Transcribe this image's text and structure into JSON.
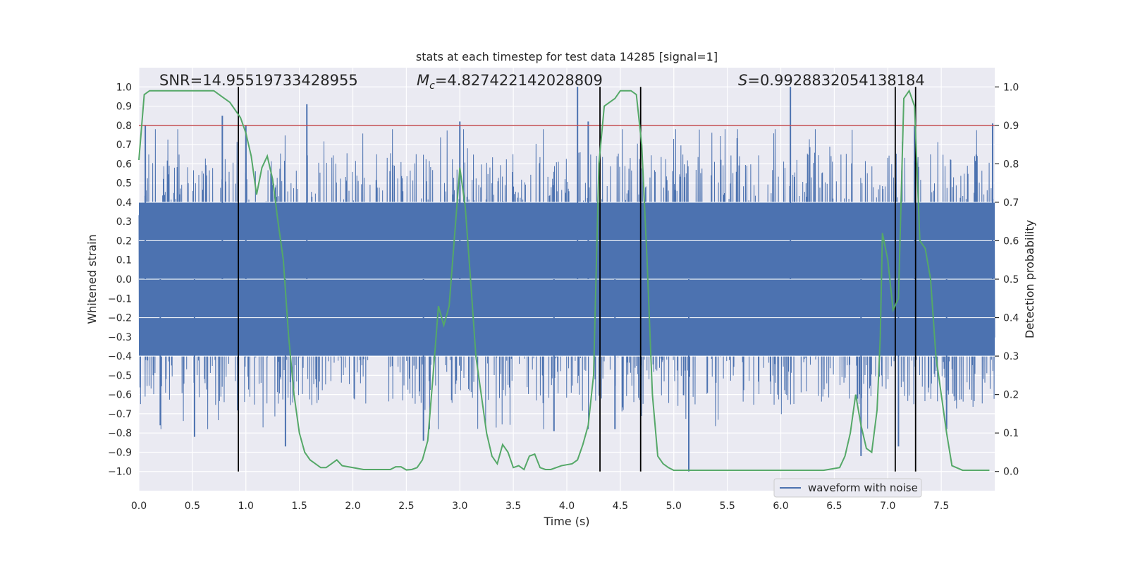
{
  "chart_data": {
    "type": "line",
    "title": "stats at each timestep for test data 14285 [signal=1]",
    "xlabel": "Time (s)",
    "ylabel_left": "Whitened strain",
    "ylabel_right": "Detection probability",
    "xlim": [
      0.0,
      8.0
    ],
    "ylim_left": [
      -1.1,
      1.1
    ],
    "ylim_right": [
      -0.05,
      1.05
    ],
    "xticks": [
      0.0,
      0.5,
      1.0,
      1.5,
      2.0,
      2.5,
      3.0,
      3.5,
      4.0,
      4.5,
      5.0,
      5.5,
      6.0,
      6.5,
      7.0,
      7.5
    ],
    "xtick_labels": [
      "0.0",
      "0.5",
      "1.0",
      "1.5",
      "2.0",
      "2.5",
      "3.0",
      "3.5",
      "4.0",
      "4.5",
      "5.0",
      "5.5",
      "6.0",
      "6.5",
      "7.0",
      "7.5"
    ],
    "yticks_left": [
      1.0,
      0.9,
      0.8,
      0.7,
      0.6,
      0.5,
      0.4,
      0.3,
      0.2,
      0.1,
      0.0,
      -0.1,
      -0.2,
      -0.3,
      -0.4,
      -0.5,
      -0.6,
      -0.7,
      -0.8,
      -0.9,
      -1.0
    ],
    "ytick_labels_left": [
      "1.0",
      "0.9",
      "0.8",
      "0.7",
      "0.6",
      "0.5",
      "0.4",
      "0.3",
      "0.2",
      "0.1",
      "0.0",
      "−0.1",
      "−0.2",
      "−0.3",
      "−0.4",
      "−0.5",
      "−0.6",
      "−0.7",
      "−0.8",
      "−0.9",
      "−1.0"
    ],
    "yticks_right": [
      1.0,
      0.9,
      0.8,
      0.7,
      0.6,
      0.5,
      0.4,
      0.3,
      0.2,
      0.1,
      0.0
    ],
    "ytick_labels_right": [
      "1.0",
      "0.9",
      "0.8",
      "0.7",
      "0.6",
      "0.5",
      "0.4",
      "0.3",
      "0.2",
      "0.1",
      "0.0"
    ],
    "annotations": {
      "snr": "SNR=14.95519733428955",
      "mc_symbol": "M",
      "mc_subscript": "c",
      "mc_value": "=4.827422142028809",
      "s_symbol": "S",
      "s_value": "=0.9928832054138184"
    },
    "legend": {
      "label": "waveform with noise",
      "location": "lower-right"
    },
    "threshold_line": {
      "value": 0.9,
      "axis": "right",
      "color": "#c44e52"
    },
    "vertical_lines": [
      0.93,
      4.31,
      4.69,
      7.07,
      7.26
    ],
    "waveform": {
      "name": "waveform with noise",
      "color": "#4c72b0",
      "x_range": [
        0.0,
        8.0
      ],
      "dense_band": [
        -0.4,
        0.4
      ],
      "peaks": [
        {
          "x": 0.06,
          "y": 0.8
        },
        {
          "x": 0.78,
          "y": 0.85
        },
        {
          "x": 1.0,
          "y": 0.8
        },
        {
          "x": 1.57,
          "y": 0.91
        },
        {
          "x": 3.0,
          "y": 0.82
        },
        {
          "x": 4.1,
          "y": 1.0
        },
        {
          "x": 6.09,
          "y": 1.0
        },
        {
          "x": 7.98,
          "y": 0.81
        },
        {
          "x": 4.2,
          "y": 0.82
        },
        {
          "x": 7.25,
          "y": 0.8
        }
      ],
      "troughs": [
        {
          "x": 0.52,
          "y": -0.82
        },
        {
          "x": 1.37,
          "y": -0.87
        },
        {
          "x": 2.66,
          "y": -0.84
        },
        {
          "x": 5.14,
          "y": -1.0
        },
        {
          "x": 6.75,
          "y": -0.92
        },
        {
          "x": 7.1,
          "y": -0.87
        },
        {
          "x": 7.55,
          "y": -0.78
        },
        {
          "x": 3.88,
          "y": -0.79
        },
        {
          "x": 4.45,
          "y": -0.78
        },
        {
          "x": 0.2,
          "y": -0.76
        }
      ]
    },
    "detection_probability": {
      "color": "#55a868",
      "axis": "right",
      "x": [
        0.0,
        0.05,
        0.1,
        0.2,
        0.3,
        0.4,
        0.5,
        0.6,
        0.7,
        0.75,
        0.8,
        0.85,
        0.9,
        0.95,
        1.0,
        1.05,
        1.1,
        1.15,
        1.2,
        1.25,
        1.3,
        1.35,
        1.4,
        1.45,
        1.5,
        1.55,
        1.6,
        1.65,
        1.7,
        1.75,
        1.8,
        1.85,
        1.9,
        2.0,
        2.1,
        2.2,
        2.25,
        2.35,
        2.4,
        2.45,
        2.5,
        2.55,
        2.6,
        2.65,
        2.7,
        2.75,
        2.8,
        2.85,
        2.9,
        3.0,
        3.05,
        3.1,
        3.15,
        3.2,
        3.25,
        3.3,
        3.35,
        3.4,
        3.45,
        3.5,
        3.55,
        3.6,
        3.65,
        3.7,
        3.75,
        3.8,
        3.85,
        3.9,
        3.95,
        4.05,
        4.1,
        4.15,
        4.2,
        4.25,
        4.3,
        4.35,
        4.4,
        4.45,
        4.5,
        4.55,
        4.6,
        4.65,
        4.7,
        4.75,
        4.8,
        4.85,
        4.9,
        4.95,
        5.0,
        5.2,
        5.4,
        5.6,
        5.8,
        6.0,
        6.2,
        6.4,
        6.55,
        6.6,
        6.65,
        6.7,
        6.75,
        6.8,
        6.85,
        6.9,
        6.93,
        6.95,
        7.0,
        7.05,
        7.1,
        7.15,
        7.2,
        7.25,
        7.3,
        7.35,
        7.4,
        7.45,
        7.5,
        7.55,
        7.6,
        7.7,
        7.8,
        7.95
      ],
      "y": [
        0.81,
        0.98,
        0.99,
        0.99,
        0.99,
        0.99,
        0.99,
        0.99,
        0.99,
        0.98,
        0.97,
        0.96,
        0.94,
        0.92,
        0.88,
        0.82,
        0.72,
        0.79,
        0.82,
        0.76,
        0.65,
        0.55,
        0.35,
        0.2,
        0.1,
        0.05,
        0.03,
        0.02,
        0.01,
        0.01,
        0.02,
        0.03,
        0.015,
        0.01,
        0.005,
        0.005,
        0.005,
        0.005,
        0.012,
        0.012,
        0.004,
        0.005,
        0.01,
        0.03,
        0.08,
        0.25,
        0.43,
        0.38,
        0.43,
        0.79,
        0.69,
        0.5,
        0.3,
        0.2,
        0.1,
        0.04,
        0.02,
        0.07,
        0.05,
        0.01,
        0.015,
        0.005,
        0.04,
        0.045,
        0.01,
        0.005,
        0.005,
        0.01,
        0.015,
        0.02,
        0.03,
        0.07,
        0.12,
        0.25,
        0.8,
        0.95,
        0.96,
        0.97,
        0.99,
        0.99,
        0.99,
        0.98,
        0.85,
        0.55,
        0.2,
        0.04,
        0.02,
        0.01,
        0.003,
        0.003,
        0.003,
        0.003,
        0.003,
        0.003,
        0.003,
        0.003,
        0.01,
        0.04,
        0.1,
        0.2,
        0.12,
        0.06,
        0.05,
        0.16,
        0.35,
        0.62,
        0.55,
        0.42,
        0.45,
        0.97,
        0.99,
        0.95,
        0.6,
        0.58,
        0.5,
        0.3,
        0.2,
        0.1,
        0.015,
        0.003,
        0.003,
        0.003
      ]
    }
  }
}
